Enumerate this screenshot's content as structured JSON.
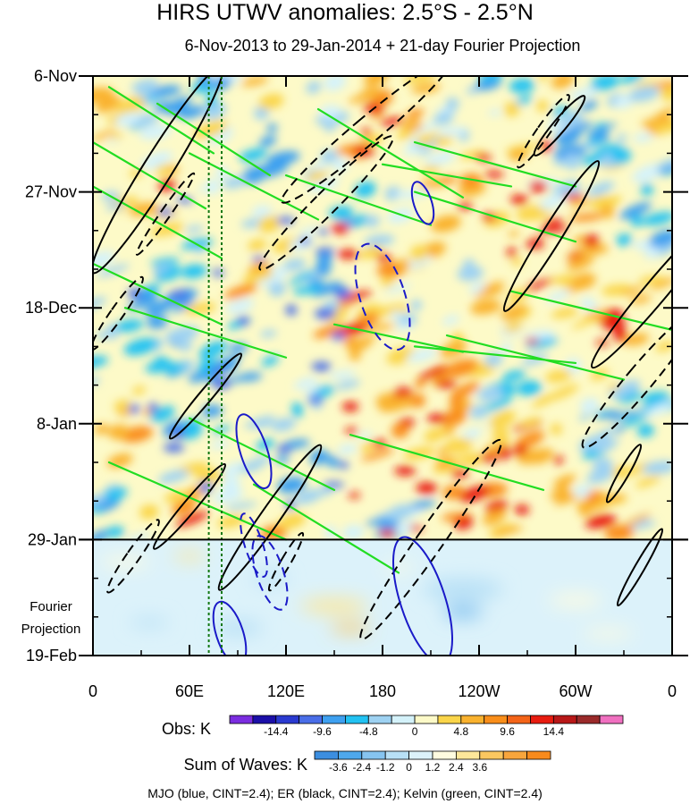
{
  "chart_data": {
    "type": "heatmap",
    "title": "HIRS UTWV anomalies: 2.5°S - 2.5°N",
    "subtitle": "6-Nov-2013 to 29-Jan-2014 + 21-day Fourier Projection",
    "x_ticks": [
      {
        "label": "0",
        "lon": 0
      },
      {
        "label": "60E",
        "lon": 60
      },
      {
        "label": "120E",
        "lon": 120
      },
      {
        "label": "180",
        "lon": 180
      },
      {
        "label": "120W",
        "lon": 240
      },
      {
        "label": "60W",
        "lon": 300
      },
      {
        "label": "0",
        "lon": 360
      }
    ],
    "xlim": [
      0,
      360
    ],
    "y_ticks": [
      {
        "label": "6-Nov",
        "day": 0
      },
      {
        "label": "27-Nov",
        "day": 21
      },
      {
        "label": "18-Dec",
        "day": 42
      },
      {
        "label": "8-Jan",
        "day": 63
      },
      {
        "label": "29-Jan",
        "day": 84
      },
      {
        "label": "19-Feb",
        "day": 105
      }
    ],
    "ylim": [
      0,
      105
    ],
    "projection_start_day": 84,
    "projection_label_1": "Fourier",
    "projection_label_2": "Projection",
    "dotted_lon_lines": [
      72,
      80
    ],
    "obs_colorbar": {
      "title": "Obs: K",
      "colors": [
        "#7b2de0",
        "#1b0fa8",
        "#2a3ad0",
        "#4a6ee8",
        "#3ea0f0",
        "#22c2f2",
        "#9ed2f2",
        "#d4f2fa",
        "#fdfac8",
        "#fad54a",
        "#f9b22e",
        "#f98e1a",
        "#f46418",
        "#e81c10",
        "#b81818",
        "#9a2a2a",
        "#f070c0"
      ],
      "labels": [
        "-14.4",
        "-9.6",
        "-4.8",
        "0",
        "4.8",
        "9.6",
        "14.4"
      ]
    },
    "waves_colorbar": {
      "title": "Sum of Waves: K",
      "colors": [
        "#3c8ee0",
        "#4ea8ec",
        "#86c4f0",
        "#b8e0f6",
        "#dcf2fa",
        "#fefce0",
        "#fde79a",
        "#fbc760",
        "#f8a53c",
        "#f88a1c"
      ],
      "labels": [
        "-3.6",
        "-2.4",
        "-1.2",
        "0",
        "1.2",
        "2.4",
        "3.6"
      ]
    },
    "contour_legend": "MJO (blue, CINT=2.4); ER (black, CINT=2.4); Kelvin (green, CINT=2.4)",
    "wave_colors": {
      "mjo": "#1a1ac8",
      "er": "#000000",
      "kelvin": "#22dd22",
      "dotted": "#117711"
    }
  }
}
